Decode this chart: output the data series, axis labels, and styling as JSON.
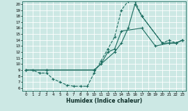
{
  "xlabel": "Humidex (Indice chaleur)",
  "bg_color": "#cce8e4",
  "grid_color": "#ffffff",
  "line_color": "#1a6b5e",
  "xlim": [
    -0.5,
    23.5
  ],
  "ylim": [
    5.5,
    20.5
  ],
  "xticks": [
    0,
    1,
    2,
    3,
    4,
    5,
    6,
    7,
    8,
    9,
    10,
    11,
    12,
    13,
    14,
    15,
    16,
    17,
    18,
    19,
    20,
    21,
    22,
    23
  ],
  "yticks": [
    6,
    7,
    8,
    9,
    10,
    11,
    12,
    13,
    14,
    15,
    16,
    17,
    18,
    19,
    20
  ],
  "line1_x": [
    0,
    1,
    2,
    3,
    4,
    5,
    6,
    7,
    8,
    9,
    10,
    11,
    12,
    13,
    14,
    15,
    16,
    17,
    20,
    21,
    22,
    23
  ],
  "line1_y": [
    9,
    9,
    8.5,
    8.5,
    7.5,
    7.0,
    6.5,
    6.3,
    6.3,
    6.3,
    8.5,
    10.5,
    12.5,
    14.5,
    19.0,
    20.5,
    20.5,
    18.0,
    13.5,
    14.0,
    13.5,
    14.0
  ],
  "line2_x": [
    0,
    3,
    10,
    11,
    12,
    13,
    14,
    17,
    19,
    21,
    22,
    23
  ],
  "line2_y": [
    9,
    9,
    9,
    10,
    12,
    12.5,
    15.5,
    16.0,
    13,
    13.5,
    13.5,
    14
  ],
  "line3_x": [
    0,
    3,
    10,
    13,
    14,
    15,
    16,
    17,
    20,
    21,
    22,
    23
  ],
  "line3_y": [
    9,
    9,
    9,
    12,
    13.5,
    16,
    20.0,
    18.0,
    13.5,
    13.5,
    13.5,
    14
  ]
}
